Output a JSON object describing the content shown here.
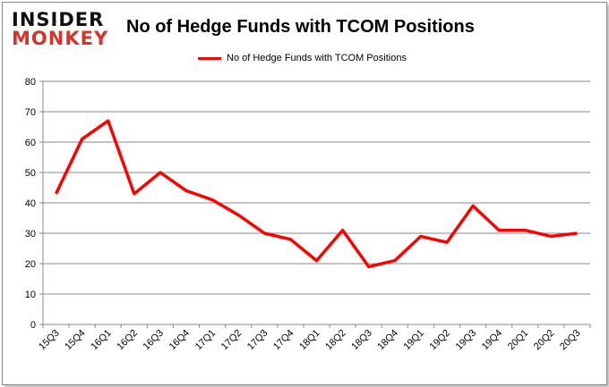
{
  "logo": {
    "line1": "INSIDER",
    "line2": "MONKEY"
  },
  "chart_data": {
    "type": "line",
    "title": "No of Hedge Funds with TCOM Positions",
    "categories": [
      "15Q3",
      "15Q4",
      "16Q1",
      "16Q2",
      "16Q3",
      "16Q4",
      "17Q1",
      "17Q2",
      "17Q3",
      "17Q4",
      "18Q1",
      "18Q2",
      "18Q3",
      "18Q4",
      "19Q1",
      "19Q2",
      "19Q3",
      "19Q4",
      "20Q1",
      "20Q2",
      "20Q3"
    ],
    "series": [
      {
        "name": "No of Hedge Funds with TCOM Positions",
        "color": "#ff0000",
        "values": [
          43,
          61,
          67,
          43,
          50,
          44,
          41,
          36,
          30,
          28,
          21,
          31,
          19,
          21,
          29,
          27,
          39,
          31,
          31,
          29,
          30
        ]
      }
    ],
    "ylim": [
      0,
      80
    ],
    "yticks": [
      0,
      10,
      20,
      30,
      40,
      50,
      60,
      70,
      80
    ],
    "xlabel": "",
    "ylabel": "",
    "grid": true,
    "legend": "top-center"
  }
}
